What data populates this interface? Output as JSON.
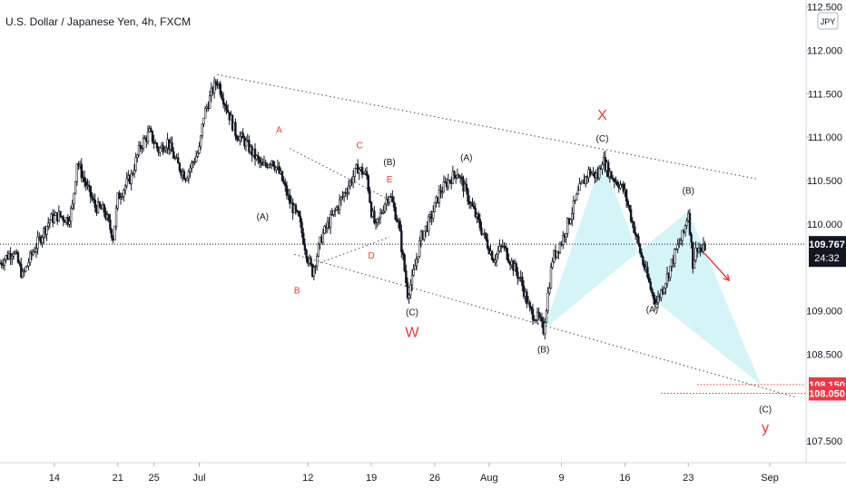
{
  "chart_data": {
    "type": "candlestick",
    "title": "U.S. Dollar / Japanese Yen, 4h, FXCM",
    "currency_badge": "JPY",
    "y_ticks": [
      {
        "label": "112.500",
        "value": 112.5
      },
      {
        "label": "112.000",
        "value": 112.0
      },
      {
        "label": "111.500",
        "value": 111.5
      },
      {
        "label": "111.000",
        "value": 111.0
      },
      {
        "label": "110.500",
        "value": 110.5
      },
      {
        "label": "110.000",
        "value": 110.0
      },
      {
        "label": "109.000",
        "value": 109.0
      },
      {
        "label": "108.500",
        "value": 108.5
      },
      {
        "label": "107.500",
        "value": 107.5
      }
    ],
    "x_ticks": [
      {
        "label": "14",
        "day": 14
      },
      {
        "label": "21",
        "day": 21
      },
      {
        "label": "25",
        "day": 25
      },
      {
        "label": "Jul",
        "day": 30
      },
      {
        "label": "12",
        "day": 42
      },
      {
        "label": "19",
        "day": 49
      },
      {
        "label": "26",
        "day": 56
      },
      {
        "label": "Aug",
        "day": 62
      },
      {
        "label": "9",
        "day": 70
      },
      {
        "label": "16",
        "day": 77
      },
      {
        "label": "23",
        "day": 84
      },
      {
        "label": "Sep",
        "day": 93
      }
    ],
    "ylim": [
      107.25,
      112.58
    ],
    "xlim": [
      8.0,
      97.0
    ],
    "last_price": {
      "label": "109.767",
      "value": 109.767,
      "countdown": "24:32"
    },
    "targets": [
      {
        "label": "108.150",
        "value": 108.15
      },
      {
        "label": "108.050",
        "value": 108.05
      }
    ],
    "price_path": [
      [
        8.0,
        109.55
      ],
      [
        9.5,
        109.7
      ],
      [
        10.5,
        109.4
      ],
      [
        11.5,
        109.65
      ],
      [
        12.5,
        109.85
      ],
      [
        13.5,
        110.05
      ],
      [
        14.5,
        110.1
      ],
      [
        15.5,
        110.05
      ],
      [
        16.0,
        110.2
      ],
      [
        16.5,
        110.72
      ],
      [
        17.5,
        110.45
      ],
      [
        18.5,
        110.2
      ],
      [
        19.5,
        110.15
      ],
      [
        20.5,
        109.85
      ],
      [
        21.0,
        110.3
      ],
      [
        22.5,
        110.55
      ],
      [
        23.5,
        110.9
      ],
      [
        24.5,
        111.05
      ],
      [
        25.5,
        110.85
      ],
      [
        26.5,
        110.95
      ],
      [
        27.5,
        110.7
      ],
      [
        28.5,
        110.55
      ],
      [
        29.5,
        110.75
      ],
      [
        30.0,
        110.85
      ],
      [
        30.5,
        111.25
      ],
      [
        31.5,
        111.55
      ],
      [
        32.0,
        111.65
      ],
      [
        33.0,
        111.35
      ],
      [
        34.0,
        111.05
      ],
      [
        35.0,
        110.95
      ],
      [
        36.0,
        110.8
      ],
      [
        37.0,
        110.65
      ],
      [
        38.0,
        110.75
      ],
      [
        39.0,
        110.55
      ],
      [
        40.0,
        110.25
      ],
      [
        41.0,
        110.05
      ],
      [
        42.0,
        109.6
      ],
      [
        42.5,
        109.45
      ],
      [
        43.5,
        109.85
      ],
      [
        44.5,
        110.05
      ],
      [
        45.5,
        110.25
      ],
      [
        46.5,
        110.45
      ],
      [
        47.5,
        110.65
      ],
      [
        48.5,
        110.55
      ],
      [
        49.0,
        110.15
      ],
      [
        49.5,
        109.95
      ],
      [
        50.5,
        110.25
      ],
      [
        51.0,
        110.35
      ],
      [
        52.0,
        110.0
      ],
      [
        53.0,
        109.2
      ],
      [
        53.5,
        109.35
      ],
      [
        54.5,
        109.85
      ],
      [
        55.5,
        110.05
      ],
      [
        56.5,
        110.35
      ],
      [
        57.5,
        110.5
      ],
      [
        58.5,
        110.6
      ],
      [
        59.5,
        110.35
      ],
      [
        60.5,
        110.1
      ],
      [
        61.5,
        109.85
      ],
      [
        62.5,
        109.6
      ],
      [
        63.5,
        109.75
      ],
      [
        64.5,
        109.55
      ],
      [
        65.5,
        109.35
      ],
      [
        66.5,
        109.0
      ],
      [
        67.5,
        108.9
      ],
      [
        68.0,
        108.78
      ],
      [
        69.0,
        109.6
      ],
      [
        70.0,
        109.8
      ],
      [
        71.0,
        110.1
      ],
      [
        72.0,
        110.4
      ],
      [
        73.0,
        110.6
      ],
      [
        74.0,
        110.55
      ],
      [
        74.5,
        110.75
      ],
      [
        75.5,
        110.55
      ],
      [
        76.5,
        110.45
      ],
      [
        77.0,
        110.35
      ],
      [
        78.0,
        109.95
      ],
      [
        79.0,
        109.55
      ],
      [
        80.0,
        109.2
      ],
      [
        80.5,
        109.1
      ],
      [
        81.5,
        109.35
      ],
      [
        82.5,
        109.65
      ],
      [
        83.5,
        109.9
      ],
      [
        84.0,
        110.15
      ],
      [
        84.5,
        109.55
      ],
      [
        85.0,
        109.75
      ],
      [
        85.5,
        109.68
      ],
      [
        86.0,
        109.77
      ]
    ],
    "trendlines": [
      {
        "name": "upper-channel",
        "from": [
          32.0,
          111.72
        ],
        "to": [
          91.5,
          110.52
        ]
      },
      {
        "name": "lower-channel",
        "from": [
          40.5,
          109.65
        ],
        "to": [
          96.0,
          108.0
        ]
      },
      {
        "name": "triangle-top",
        "from": [
          40.0,
          110.87
        ],
        "to": [
          51.5,
          110.25
        ]
      },
      {
        "name": "triangle-bottom",
        "from": [
          42.5,
          109.52
        ],
        "to": [
          51.0,
          109.85
        ]
      }
    ],
    "harmonic_patterns": [
      {
        "name": "xabcd-left",
        "points": [
          [
            68.0,
            108.78
          ],
          [
            74.5,
            110.75
          ],
          [
            80.5,
            109.1
          ],
          [
            84.0,
            110.15
          ]
        ]
      },
      {
        "name": "xabcd-right",
        "points": [
          [
            80.5,
            109.1
          ],
          [
            84.0,
            110.15
          ],
          [
            92.0,
            108.15
          ]
        ]
      }
    ],
    "projection_arrow": {
      "from": [
        85.8,
        109.66
      ],
      "to": [
        88.5,
        109.35
      ]
    },
    "wave_labels": [
      {
        "text": "A",
        "x": 38.8,
        "y": 111.05,
        "color": "#e53935"
      },
      {
        "text": "C",
        "x": 47.7,
        "y": 110.87,
        "color": "#e53935"
      },
      {
        "text": "(B)",
        "x": 51.0,
        "y": 110.68,
        "color": "#131722"
      },
      {
        "text": "E",
        "x": 51.0,
        "y": 110.48,
        "color": "#e53935"
      },
      {
        "text": "(A)",
        "x": 37.0,
        "y": 110.05,
        "color": "#131722"
      },
      {
        "text": "D",
        "x": 49.0,
        "y": 109.6,
        "color": "#e53935"
      },
      {
        "text": "B",
        "x": 40.8,
        "y": 109.2,
        "color": "#e53935"
      },
      {
        "text": "(C)",
        "x": 53.5,
        "y": 108.95,
        "color": "#131722"
      },
      {
        "text": "(A)",
        "x": 59.5,
        "y": 110.73,
        "color": "#131722"
      },
      {
        "text": "(C)",
        "x": 74.5,
        "y": 110.95,
        "color": "#131722"
      },
      {
        "text": "(B)",
        "x": 68.0,
        "y": 108.52,
        "color": "#131722"
      },
      {
        "text": "(B)",
        "x": 84.0,
        "y": 110.35,
        "color": "#131722"
      },
      {
        "text": "(A)",
        "x": 80.0,
        "y": 108.98,
        "color": "#131722"
      },
      {
        "text": "(C)",
        "x": 92.5,
        "y": 107.83,
        "color": "#131722"
      }
    ],
    "big_labels": [
      {
        "text": "X",
        "x": 74.5,
        "y": 111.2,
        "color": "#e53935"
      },
      {
        "text": "W",
        "x": 53.5,
        "y": 108.7,
        "color": "#e53935"
      },
      {
        "text": "y",
        "x": 92.5,
        "y": 107.6,
        "color": "#e53935"
      }
    ],
    "colors": {
      "candle": "#131722",
      "trendline": "#5d606b",
      "harmonic_fill": "#b2ebf2",
      "target_line": "#e53935",
      "last_price_bg": "#131722",
      "target_bg": "#f23645",
      "grid_text": "#131722"
    }
  }
}
